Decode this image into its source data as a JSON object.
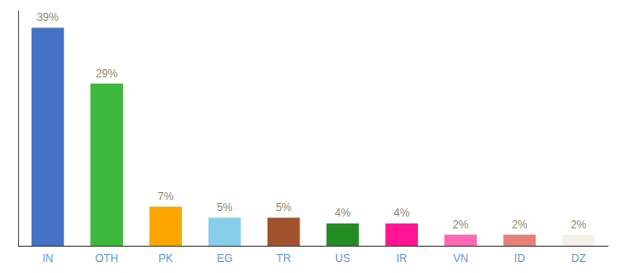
{
  "chart_data": {
    "type": "bar",
    "categories": [
      "IN",
      "OTH",
      "PK",
      "EG",
      "TR",
      "US",
      "IR",
      "VN",
      "ID",
      "DZ"
    ],
    "values": [
      39,
      29,
      7,
      5,
      5,
      4,
      4,
      2,
      2,
      2
    ],
    "value_labels": [
      "39%",
      "29%",
      "7%",
      "5%",
      "5%",
      "4%",
      "4%",
      "2%",
      "2%",
      "2%"
    ],
    "colors": [
      "#4472C4",
      "#3CB83C",
      "#FFA500",
      "#87CEEB",
      "#A0522D",
      "#228B22",
      "#FF1493",
      "#FF69B4",
      "#E8807A",
      "#F5F0E8"
    ],
    "ylim": [
      0,
      42
    ],
    "data_labels": true,
    "tick_labels": "x",
    "grid": false
  }
}
